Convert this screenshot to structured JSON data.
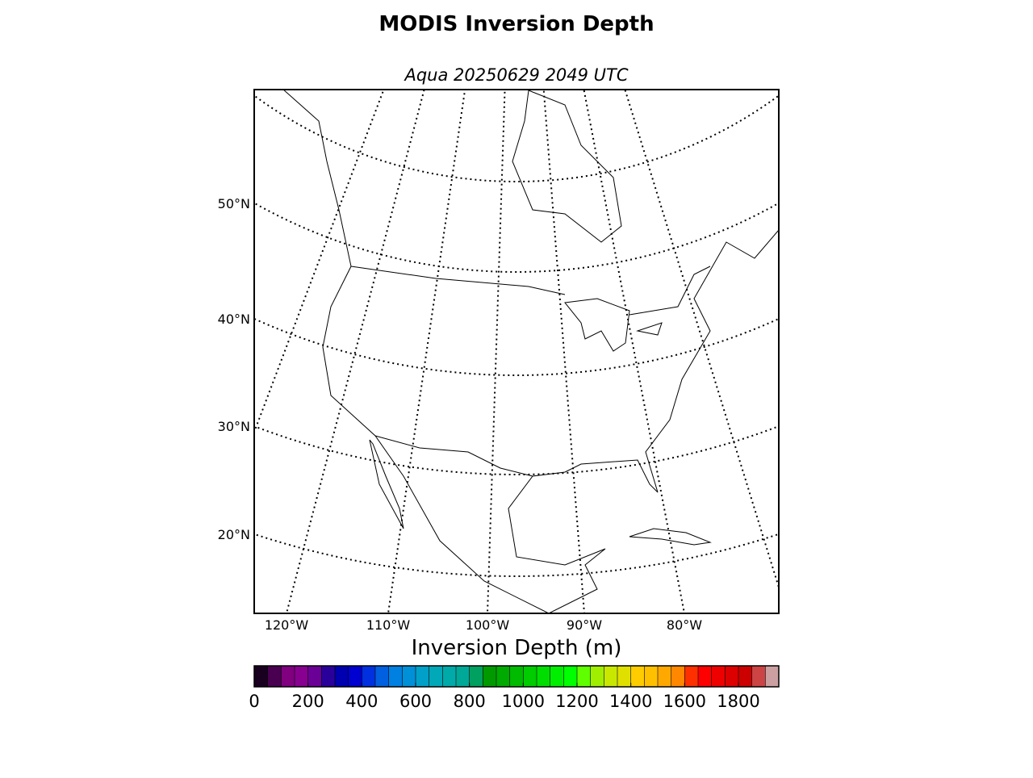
{
  "title": "MODIS Inversion Depth",
  "subtitle": "Aqua 20250629 2049 UTC",
  "map": {
    "lat_labels": [
      "50°N",
      "40°N",
      "30°N",
      "20°N"
    ],
    "lon_labels": [
      "120°W",
      "110°W",
      "100°W",
      "90°W",
      "80°W"
    ]
  },
  "colorbar": {
    "label": "Inversion Depth (m)",
    "range": [
      0,
      1950
    ],
    "ticks": [
      0,
      200,
      400,
      600,
      800,
      1000,
      1200,
      1400,
      1600,
      1800
    ],
    "colors": [
      "#1a0020",
      "#4a0050",
      "#800080",
      "#880090",
      "#6a0096",
      "#2a009a",
      "#0000b0",
      "#0000d0",
      "#0030e0",
      "#0060e0",
      "#0080e0",
      "#0090d8",
      "#00a0c8",
      "#00a8b8",
      "#00aaa8",
      "#00a898",
      "#00a060",
      "#009a00",
      "#00aa00",
      "#00bb00",
      "#00cc00",
      "#00dd00",
      "#00ee00",
      "#00ff00",
      "#60ff00",
      "#a0ee00",
      "#c8e800",
      "#e0e000",
      "#ffcc00",
      "#ffc000",
      "#ffa800",
      "#ff8800",
      "#ff3000",
      "#ff0000",
      "#ee0000",
      "#dd0000",
      "#cc0000",
      "#cc4444",
      "#cca0a0"
    ]
  }
}
